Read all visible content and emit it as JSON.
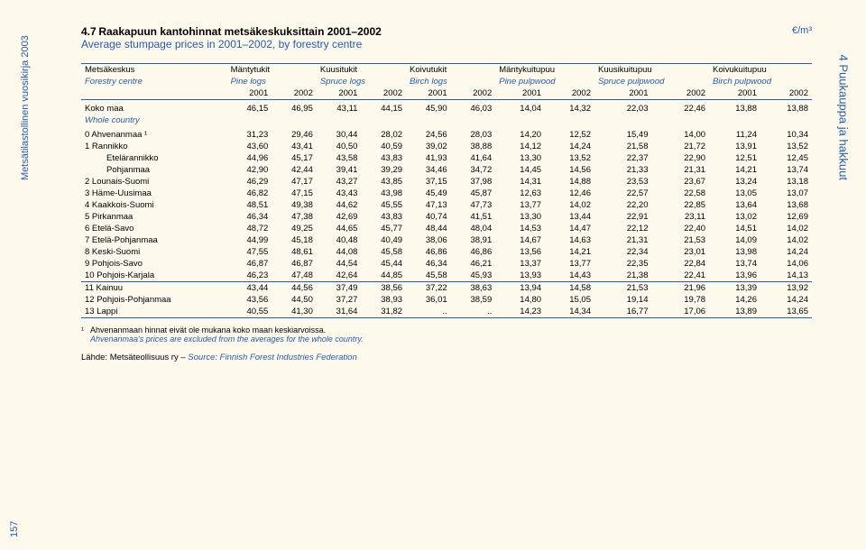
{
  "title": {
    "num": "4.7",
    "fi": "Raakapuun kantohinnat metsäkeskuksittain 2001–2002",
    "en": "Average stumpage prices in 2001–2002, by forestry centre"
  },
  "unit": "€/m³",
  "side_left": "Metsätilastollinen vuosikirja 2003",
  "side_right": "4 Puukauppa ja hakkuut",
  "page_num": "157",
  "header": {
    "col_fi": "Metsäkeskus",
    "col_en": "Forestry centre",
    "groups": [
      {
        "fi": "Mäntytukit",
        "en": "Pine logs"
      },
      {
        "fi": "Kuusitukit",
        "en": "Spruce logs"
      },
      {
        "fi": "Koivutukit",
        "en": "Birch logs"
      },
      {
        "fi": "Mäntykuitupuu",
        "en": "Pine pulpwood"
      },
      {
        "fi": "Kuusikuitupuu",
        "en": "Spruce pulpwood"
      },
      {
        "fi": "Koivukuitupuu",
        "en": "Birch pulpwood"
      }
    ],
    "years": [
      "2001",
      "2002"
    ]
  },
  "koko": {
    "label": "Koko maa",
    "vals": [
      "46,15",
      "46,95",
      "43,11",
      "44,15",
      "45,90",
      "46,03",
      "14,04",
      "14,32",
      "22,03",
      "22,46",
      "13,88",
      "13,88"
    ]
  },
  "whole": "Whole country",
  "rows": [
    {
      "label": "0 Ahvenanmaa ¹",
      "indent": 0,
      "vals": [
        "31,23",
        "29,46",
        "30,44",
        "28,02",
        "24,56",
        "28,03",
        "14,20",
        "12,52",
        "15,49",
        "14,00",
        "11,24",
        "10,34"
      ]
    },
    {
      "label": "1 Rannikko",
      "indent": 0,
      "vals": [
        "43,60",
        "43,41",
        "40,50",
        "40,59",
        "39,02",
        "38,88",
        "14,12",
        "14,24",
        "21,58",
        "21,72",
        "13,91",
        "13,52"
      ]
    },
    {
      "label": "Etelärannikko",
      "indent": 2,
      "vals": [
        "44,96",
        "45,17",
        "43,58",
        "43,83",
        "41,93",
        "41,64",
        "13,30",
        "13,52",
        "22,37",
        "22,90",
        "12,51",
        "12,45"
      ]
    },
    {
      "label": "Pohjanmaa",
      "indent": 2,
      "vals": [
        "42,90",
        "42,44",
        "39,41",
        "39,29",
        "34,46",
        "34,72",
        "14,45",
        "14,56",
        "21,33",
        "21,31",
        "14,21",
        "13,74"
      ]
    },
    {
      "label": "2 Lounais-Suomi",
      "indent": 0,
      "vals": [
        "46,29",
        "47,17",
        "43,27",
        "43,85",
        "37,15",
        "37,98",
        "14,31",
        "14,88",
        "23,53",
        "23,67",
        "13,24",
        "13,18"
      ]
    },
    {
      "label": "3 Häme-Uusimaa",
      "indent": 0,
      "vals": [
        "46,82",
        "47,15",
        "43,43",
        "43,98",
        "45,49",
        "45,87",
        "12,63",
        "12,46",
        "22,57",
        "22,58",
        "13,05",
        "13,07"
      ]
    },
    {
      "label": "4 Kaakkois-Suomi",
      "indent": 0,
      "vals": [
        "48,51",
        "49,38",
        "44,62",
        "45,55",
        "47,13",
        "47,73",
        "13,77",
        "14,02",
        "22,20",
        "22,85",
        "13,64",
        "13,68"
      ]
    },
    {
      "label": "5 Pirkanmaa",
      "indent": 0,
      "vals": [
        "46,34",
        "47,38",
        "42,69",
        "43,83",
        "40,74",
        "41,51",
        "13,30",
        "13,44",
        "22,91",
        "23,11",
        "13,02",
        "12,69"
      ]
    },
    {
      "label": "6 Etelä-Savo",
      "indent": 0,
      "vals": [
        "48,72",
        "49,25",
        "44,65",
        "45,77",
        "48,44",
        "48,04",
        "14,53",
        "14,47",
        "22,12",
        "22,40",
        "14,51",
        "14,02"
      ]
    },
    {
      "label": "7 Etelä-Pohjanmaa",
      "indent": 0,
      "vals": [
        "44,99",
        "45,18",
        "40,48",
        "40,49",
        "38,06",
        "38,91",
        "14,67",
        "14,63",
        "21,31",
        "21,53",
        "14,09",
        "14,02"
      ]
    },
    {
      "label": "8 Keski-Suomi",
      "indent": 0,
      "vals": [
        "47,55",
        "48,61",
        "44,08",
        "45,58",
        "46,86",
        "46,86",
        "13,56",
        "14,21",
        "22,34",
        "23,01",
        "13,98",
        "14,24"
      ]
    },
    {
      "label": "9 Pohjois-Savo",
      "indent": 0,
      "vals": [
        "46,87",
        "46,87",
        "44,54",
        "45,44",
        "46,34",
        "46,21",
        "13,37",
        "13,77",
        "22,35",
        "22,84",
        "13,74",
        "14,06"
      ]
    },
    {
      "label": "10 Pohjois-Karjala",
      "indent": 0,
      "vals": [
        "46,23",
        "47,48",
        "42,64",
        "44,85",
        "45,58",
        "45,93",
        "13,93",
        "14,43",
        "21,38",
        "22,41",
        "13,96",
        "14,13"
      ]
    }
  ],
  "rows2": [
    {
      "label": "11 Kainuu",
      "vals": [
        "43,44",
        "44,56",
        "37,49",
        "38,56",
        "37,22",
        "38,63",
        "13,94",
        "14,58",
        "21,53",
        "21,96",
        "13,39",
        "13,92"
      ]
    },
    {
      "label": "12 Pohjois-Pohjanmaa",
      "vals": [
        "43,56",
        "44,50",
        "37,27",
        "38,93",
        "36,01",
        "38,59",
        "14,80",
        "15,05",
        "19,14",
        "19,78",
        "14,26",
        "14,24"
      ]
    },
    {
      "label": "13 Lappi",
      "vals": [
        "40,55",
        "41,30",
        "31,64",
        "31,82",
        "..",
        "..",
        "14,23",
        "14,34",
        "16,77",
        "17,06",
        "13,89",
        "13,65"
      ]
    }
  ],
  "footnote": {
    "marker": "¹",
    "fi": "Ahvenanmaan hinnat eivät ole mukana koko maan keskiarvoissa.",
    "en": "Ahvenanmaa's prices are excluded from the averages for the whole country."
  },
  "source": {
    "fi": "Lähde: Metsäteollisuus ry – ",
    "en": "Source: Finnish Forest Industries Federation"
  }
}
